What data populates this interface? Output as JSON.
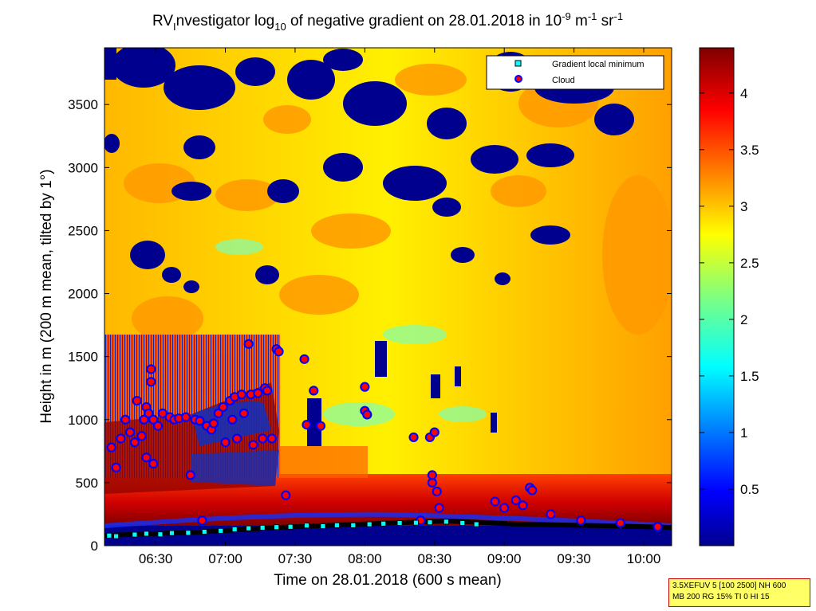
{
  "chart_data": {
    "type": "heatmap",
    "title": {
      "prefix": "RV",
      "prefix_sub": "I",
      "part1": "nvestigator log",
      "part1_sub": "10",
      "part2": " of negative gradient on 28.01.2018 in 10",
      "exp1": "-9",
      "part3": " m",
      "exp2": "-1",
      "part4": " sr",
      "exp3": "-1"
    },
    "xlabel": "Time on 28.01.2018 (600 s mean)",
    "ylabel": "Height in m (200 m mean, tilted by 1°)",
    "xlim": [
      "06:08",
      "10:12"
    ],
    "ylim": [
      0,
      3950
    ],
    "x_ticks": [
      "06:30",
      "07:00",
      "07:30",
      "08:00",
      "08:30",
      "09:00",
      "09:30",
      "10:00"
    ],
    "y_ticks": [
      0,
      500,
      1000,
      1500,
      2000,
      2500,
      3000,
      3500
    ],
    "colorbar": {
      "min": 0,
      "max": 4.4,
      "ticks": [
        0.5,
        1,
        1.5,
        2,
        2.5,
        3,
        3.5,
        4
      ],
      "colormap": "jet"
    },
    "legend": {
      "position": "top-right",
      "entries": [
        {
          "name": "Gradient local minimum",
          "color": "#00ffff",
          "marker": "square"
        },
        {
          "name": "Cloud",
          "color": "#ff0000",
          "edge": "#0000ff",
          "marker": "circle"
        }
      ]
    },
    "series": [
      {
        "name": "Cloud",
        "points": [
          [
            "06:11",
            780
          ],
          [
            "06:13",
            620
          ],
          [
            "06:15",
            850
          ],
          [
            "06:17",
            1000
          ],
          [
            "06:19",
            900
          ],
          [
            "06:21",
            820
          ],
          [
            "06:22",
            1150
          ],
          [
            "06:24",
            870
          ],
          [
            "06:25",
            1000
          ],
          [
            "06:26",
            1100
          ],
          [
            "06:26",
            700
          ],
          [
            "06:27",
            1050
          ],
          [
            "06:28",
            1400
          ],
          [
            "06:28",
            1300
          ],
          [
            "06:29",
            650
          ],
          [
            "06:29",
            1000
          ],
          [
            "06:31",
            950
          ],
          [
            "06:33",
            1050
          ],
          [
            "06:36",
            1020
          ],
          [
            "06:38",
            1000
          ],
          [
            "06:40",
            1010
          ],
          [
            "06:43",
            1020
          ],
          [
            "06:45",
            560
          ],
          [
            "06:47",
            1000
          ],
          [
            "06:49",
            990
          ],
          [
            "06:50",
            200
          ],
          [
            "06:52",
            950
          ],
          [
            "06:54",
            920
          ],
          [
            "06:55",
            970
          ],
          [
            "06:57",
            1050
          ],
          [
            "06:59",
            1100
          ],
          [
            "07:00",
            820
          ],
          [
            "07:02",
            1150
          ],
          [
            "07:03",
            1000
          ],
          [
            "07:04",
            1180
          ],
          [
            "07:05",
            850
          ],
          [
            "07:07",
            1200
          ],
          [
            "07:08",
            1050
          ],
          [
            "07:10",
            1600
          ],
          [
            "07:11",
            1200
          ],
          [
            "07:12",
            800
          ],
          [
            "07:14",
            1210
          ],
          [
            "07:16",
            850
          ],
          [
            "07:17",
            1250
          ],
          [
            "07:18",
            1230
          ],
          [
            "07:20",
            850
          ],
          [
            "07:22",
            1560
          ],
          [
            "07:23",
            1540
          ],
          [
            "07:26",
            400
          ],
          [
            "07:34",
            1480
          ],
          [
            "07:35",
            960
          ],
          [
            "07:38",
            1230
          ],
          [
            "07:41",
            950
          ],
          [
            "08:00",
            1260
          ],
          [
            "08:00",
            1070
          ],
          [
            "08:01",
            1040
          ],
          [
            "08:21",
            860
          ],
          [
            "08:24",
            200
          ],
          [
            "08:28",
            860
          ],
          [
            "08:29",
            500
          ],
          [
            "08:29",
            560
          ],
          [
            "08:30",
            900
          ],
          [
            "08:31",
            430
          ],
          [
            "08:32",
            300
          ],
          [
            "08:56",
            350
          ],
          [
            "09:00",
            300
          ],
          [
            "09:05",
            360
          ],
          [
            "09:08",
            320
          ],
          [
            "09:11",
            460
          ],
          [
            "09:12",
            440
          ],
          [
            "09:20",
            250
          ],
          [
            "09:33",
            200
          ],
          [
            "09:50",
            180
          ],
          [
            "10:06",
            150
          ]
        ]
      },
      {
        "name": "Gradient local minimum",
        "points": [
          [
            "06:10",
            80
          ],
          [
            "06:13",
            75
          ],
          [
            "06:21",
            88
          ],
          [
            "06:26",
            95
          ],
          [
            "06:32",
            90
          ],
          [
            "06:37",
            100
          ],
          [
            "06:44",
            102
          ],
          [
            "06:51",
            110
          ],
          [
            "06:58",
            118
          ],
          [
            "07:04",
            130
          ],
          [
            "07:10",
            138
          ],
          [
            "07:16",
            143
          ],
          [
            "07:22",
            147
          ],
          [
            "07:28",
            150
          ],
          [
            "07:35",
            160
          ],
          [
            "07:42",
            155
          ],
          [
            "07:48",
            162
          ],
          [
            "07:55",
            162
          ],
          [
            "08:02",
            170
          ],
          [
            "08:08",
            175
          ],
          [
            "08:15",
            180
          ],
          [
            "08:22",
            182
          ],
          [
            "08:28",
            185
          ],
          [
            "08:35",
            190
          ],
          [
            "08:42",
            180
          ],
          [
            "08:48",
            170
          ]
        ]
      }
    ]
  },
  "info_box": {
    "line1": "3.5XEFUV 5 [100 2500] NH 600",
    "line2": "MB 200 RG 15% TI 0 HI 15"
  }
}
